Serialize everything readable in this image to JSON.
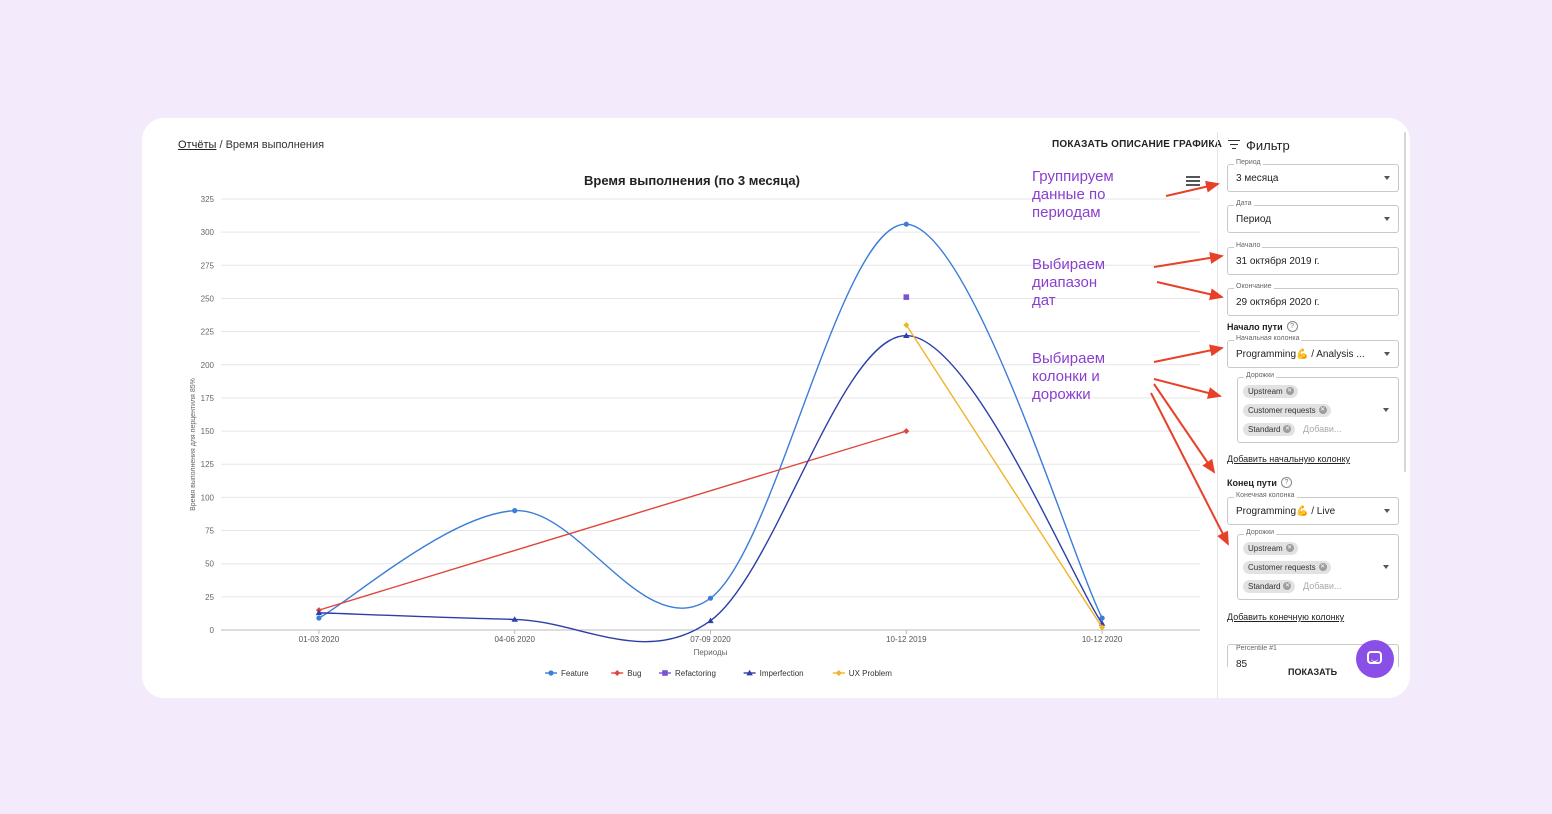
{
  "breadcrumb": {
    "link": "Отчёты",
    "separator": "/",
    "current": "Время выполнения"
  },
  "header": {
    "show_description": "ПОКАЗАТЬ ОПИСАНИЕ ГРАФИКА"
  },
  "annotations": [
    {
      "text": "Группируем\nданные по\nпериодам"
    },
    {
      "text": "Выбираем\nдиапазон\nдат"
    },
    {
      "text": "Выбираем\nколонки и\nдорожки"
    }
  ],
  "filter": {
    "title": "Фильтр",
    "period": {
      "label": "Период",
      "value": "3 месяца"
    },
    "date": {
      "label": "Дата",
      "value": "Период"
    },
    "start": {
      "label": "Начало",
      "value": "31 октября 2019 г."
    },
    "end": {
      "label": "Окончание",
      "value": "29 октября 2020 г."
    },
    "path_start": {
      "title": "Начало пути",
      "help": "?",
      "column": {
        "label": "Начальная колонка",
        "value": "Programming💪 / Analysis ..."
      },
      "lanes": {
        "label": "Дорожки",
        "chips": [
          "Upstream",
          "Customer requests",
          "Standard"
        ],
        "placeholder": "Добави..."
      },
      "add_link": "Добавить начальную колонку"
    },
    "path_end": {
      "title": "Конец пути",
      "help": "?",
      "column": {
        "label": "Конечная колонка",
        "value": "Programming💪 / Live"
      },
      "lanes": {
        "label": "Дорожки",
        "chips": [
          "Upstream",
          "Customer requests",
          "Standard"
        ],
        "placeholder": "Добави..."
      },
      "add_link": "Добавить конечную колонку"
    },
    "percentile": {
      "label": "Percentile #1",
      "value": "85"
    },
    "show_button": "ПОКАЗАТЬ"
  },
  "colors": {
    "annotation": "#8a3fd1",
    "arrow": "#e8412a",
    "chat": "#8a4fe6"
  },
  "chart_data": {
    "type": "line",
    "title": "Время выполнения (по 3 месяца)",
    "xlabel": "Периоды",
    "ylabel": "Время выполнения для перцентиля 85%",
    "categories": [
      "01-03 2020",
      "04-06 2020",
      "07-09 2020",
      "10-12 2019",
      "10-12 2020"
    ],
    "ylim": [
      0,
      325
    ],
    "yticks": [
      0,
      25,
      50,
      75,
      100,
      125,
      150,
      175,
      200,
      225,
      250,
      275,
      300,
      325
    ],
    "grid": true,
    "legend_position": "bottom",
    "series": [
      {
        "name": "Feature",
        "color": "#3b7dd8",
        "marker": "circle",
        "smooth": true,
        "values": [
          9,
          90,
          24,
          306,
          9
        ]
      },
      {
        "name": "Bug",
        "color": "#e0463c",
        "marker": "diamond",
        "smooth": false,
        "values": [
          15,
          null,
          null,
          150,
          null
        ]
      },
      {
        "name": "Refactoring",
        "color": "#7b52d6",
        "marker": "square",
        "smooth": false,
        "values": [
          null,
          null,
          null,
          251,
          null
        ]
      },
      {
        "name": "Imperfection",
        "color": "#2d3fa8",
        "marker": "triangle",
        "smooth": true,
        "values": [
          13,
          8,
          7,
          222,
          5
        ]
      },
      {
        "name": "UX Problem",
        "color": "#f0b429",
        "marker": "diamond",
        "smooth": false,
        "values": [
          null,
          null,
          null,
          230,
          2
        ]
      }
    ]
  }
}
